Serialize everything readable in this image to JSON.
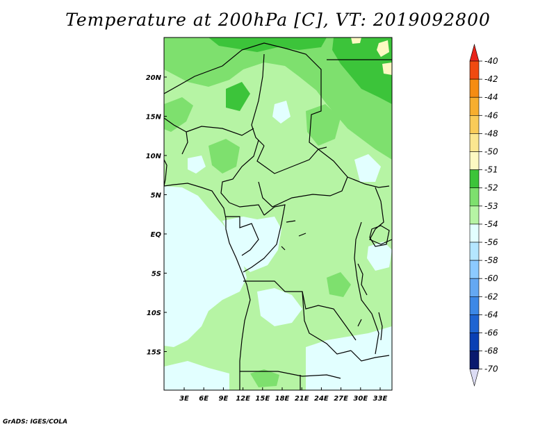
{
  "title": "Temperature at 200hPa [C], VT: 2019092800",
  "credit": "GrADS: IGES/COLA",
  "colors": {
    "background": "#ffffff",
    "frame": "#000000",
    "levels": {
      "-40": "#e8241a",
      "-42": "#f04a10",
      "-44": "#f58c12",
      "-46": "#f7ae2e",
      "-48": "#f9cb58",
      "-50": "#fbe690",
      "-51": "#fdf9c2",
      "-52": "#3cc43a",
      "-53": "#7ee06e",
      "-54": "#b6f4a4",
      "-56": "#e2ffff",
      "-58": "#b4e6ff",
      "-60": "#8ccaff",
      "-62": "#64a8f2",
      "-64": "#3c88e6",
      "-66": "#1e64d2",
      "-68": "#0a40b4",
      "-70": "#0a1a6e"
    }
  },
  "map": {
    "lon_labels": [
      "3E",
      "6E",
      "9E",
      "12E",
      "15E",
      "18E",
      "21E",
      "24E",
      "27E",
      "30E",
      "33E"
    ],
    "lat_labels": [
      "20N",
      "15N",
      "10N",
      "5N",
      "EQ",
      "5S",
      "10S",
      "15S"
    ]
  },
  "colorbar": {
    "labels": [
      "-40",
      "-42",
      "-44",
      "-46",
      "-48",
      "-50",
      "-51",
      "-52",
      "-53",
      "-54",
      "-56",
      "-58",
      "-60",
      "-62",
      "-64",
      "-66",
      "-68",
      "-70"
    ],
    "top_arrow_color": "#e8241a",
    "bottom_arrow_color": "#dcdcf4"
  }
}
